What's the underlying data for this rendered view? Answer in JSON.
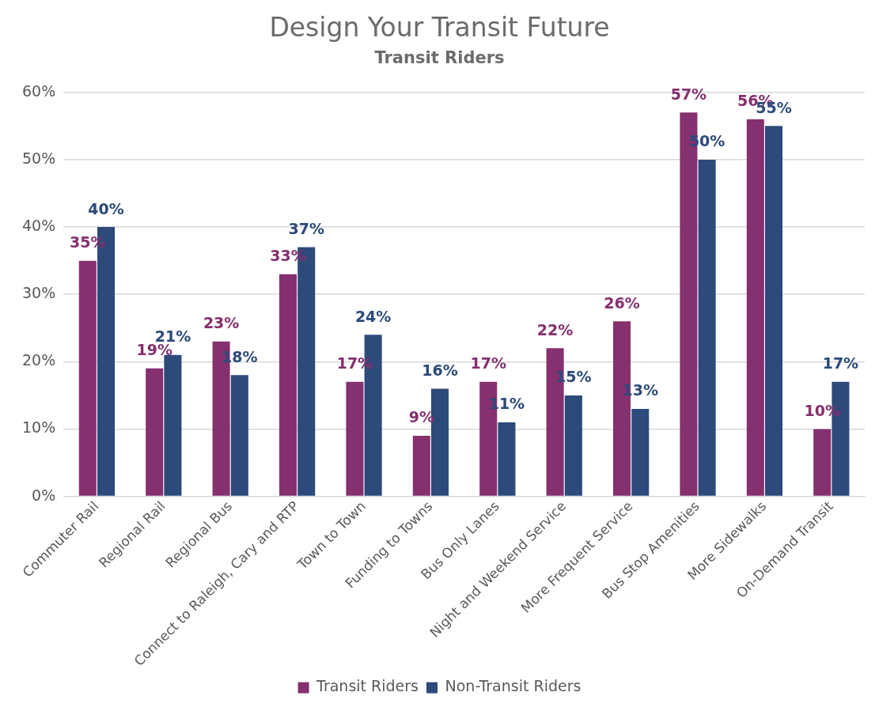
{
  "chart_data": {
    "type": "bar",
    "title": "Design Your Transit Future",
    "subtitle": "Transit Riders",
    "categories": [
      "Commuter Rail",
      "Regional Rail",
      "Regional Bus",
      "Connect to Raleigh, Cary and RTP",
      "Town to Town",
      "Funding to Towns",
      "Bus Only Lanes",
      "Night and Weekend Service",
      "More Frequent Service",
      "Bus Stop Amenities",
      "More Sidewalks",
      "On-Demand Transit"
    ],
    "series": [
      {
        "name": "Transit Riders",
        "color": "#85306f",
        "values": [
          35,
          19,
          23,
          33,
          17,
          9,
          17,
          22,
          26,
          57,
          56,
          10
        ],
        "value_labels": [
          "35%",
          "19%",
          "23%",
          "33%",
          "17%",
          "9%",
          "17%",
          "22%",
          "26%",
          "57%",
          "56%",
          "10%"
        ]
      },
      {
        "name": "Non-Transit Riders",
        "color": "#2c4a7a",
        "values": [
          40,
          21,
          18,
          37,
          24,
          16,
          11,
          15,
          13,
          50,
          55,
          17
        ],
        "value_labels": [
          "40%",
          "21%",
          "18%",
          "37%",
          "24%",
          "16%",
          "11%",
          "15%",
          "13%",
          "50%",
          "55%",
          "17%"
        ]
      }
    ],
    "ylim": [
      0,
      60
    ],
    "yticks": [
      {
        "value": 0,
        "label": "0%"
      },
      {
        "value": 10,
        "label": "10%"
      },
      {
        "value": 20,
        "label": "20%"
      },
      {
        "value": 30,
        "label": "30%"
      },
      {
        "value": 40,
        "label": "40%"
      },
      {
        "value": 50,
        "label": "50%"
      },
      {
        "value": 60,
        "label": "60%"
      }
    ],
    "grid": "y",
    "legend": "bottom"
  }
}
